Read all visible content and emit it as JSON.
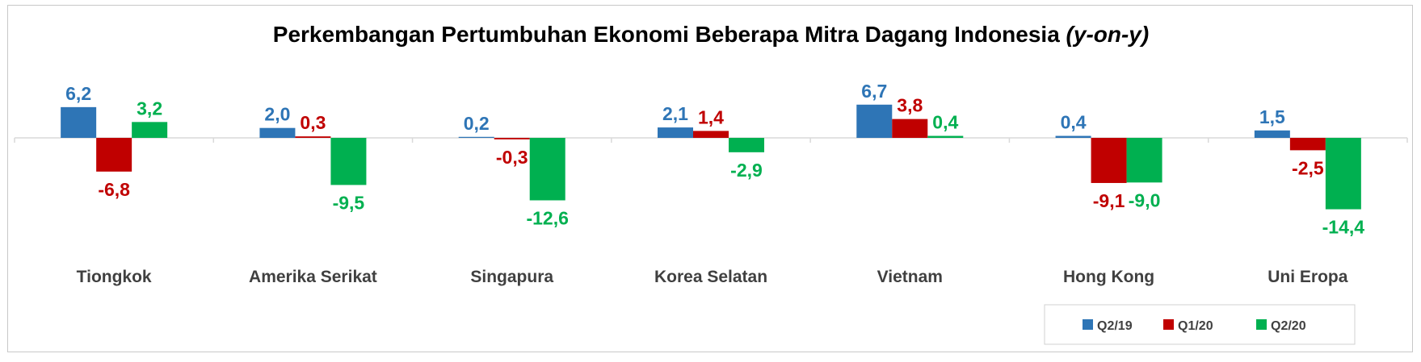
{
  "chart_data": {
    "type": "bar",
    "title": "Perkembangan Pertumbuhan Ekonomi Beberapa Mitra Dagang Indonesia",
    "title_italic": "(y-on-y)",
    "xlabel": "",
    "ylabel": "",
    "categories": [
      "Tiongkok",
      "Amerika Serikat",
      "Singapura",
      "Korea Selatan",
      "Vietnam",
      "Hong Kong",
      "Uni Eropa"
    ],
    "series": [
      {
        "name": "Q2/19",
        "color": "#2E75B6",
        "values": [
          6.2,
          2.0,
          0.2,
          2.1,
          6.7,
          0.4,
          1.5
        ],
        "labels": [
          "6,2",
          "2,0",
          "0,2",
          "2,1",
          "6,7",
          "0,4",
          "1,5"
        ]
      },
      {
        "name": "Q1/20",
        "color": "#C00000",
        "values": [
          -6.8,
          0.3,
          -0.3,
          1.4,
          3.8,
          -9.1,
          -2.5
        ],
        "labels": [
          "-6,8",
          "0,3",
          "-0,3",
          "1,4",
          "3,8",
          "-9,1",
          "-2,5"
        ]
      },
      {
        "name": "Q2/20",
        "color": "#00B050",
        "values": [
          3.2,
          -9.5,
          -12.6,
          -2.9,
          0.4,
          -9.0,
          -14.4
        ],
        "labels": [
          "3,2",
          "-9,5",
          "-12,6",
          "-2,9",
          "0,4",
          "-9,0",
          "-14,4"
        ]
      }
    ],
    "ylim": [
      -14.4,
      6.7
    ],
    "grid": false,
    "legend_position": "bottom-right"
  }
}
